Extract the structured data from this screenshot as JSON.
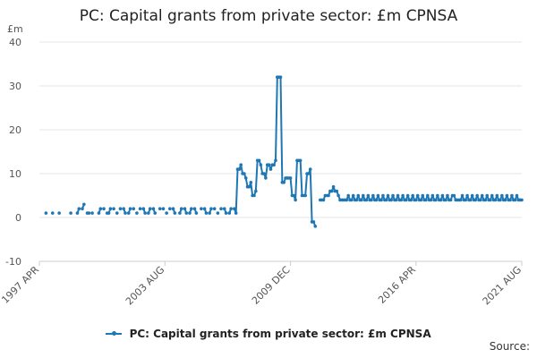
{
  "title": "PC: Capital grants from private sector: £m CPNSA",
  "source_label": "Source:",
  "colors": {
    "series": "#1f77b4",
    "grid": "#e6e6e6",
    "axis": "#cccccc"
  },
  "chart_data": {
    "type": "line",
    "unit_label": "£m",
    "ylim": [
      -10,
      40
    ],
    "yticks": [
      -10,
      0,
      10,
      20,
      30,
      40
    ],
    "xlim": [
      0,
      292
    ],
    "xticks": [
      {
        "label": "1997 APR",
        "at": 0
      },
      {
        "label": "2003 AUG",
        "at": 76
      },
      {
        "label": "2009 DEC",
        "at": 152
      },
      {
        "label": "2016 APR",
        "at": 228
      },
      {
        "label": "2021 AUG",
        "at": 292
      }
    ],
    "grid": true,
    "legend": "bottom",
    "series": [
      {
        "name": "PC: Capital grants from private sector: £m CPNSA",
        "points": [
          [
            4,
            1
          ],
          [
            8,
            1
          ],
          [
            12,
            1
          ],
          [
            19,
            1
          ],
          [
            23,
            1
          ],
          [
            24,
            2
          ],
          [
            26,
            2
          ],
          [
            27,
            3
          ],
          [
            29,
            1
          ],
          [
            30,
            1
          ],
          [
            32,
            1
          ],
          [
            36,
            1
          ],
          [
            37,
            2
          ],
          [
            39,
            2
          ],
          [
            41,
            1
          ],
          [
            42,
            1
          ],
          [
            43,
            2
          ],
          [
            45,
            2
          ],
          [
            47,
            1
          ],
          [
            49,
            2
          ],
          [
            51,
            2
          ],
          [
            52,
            1
          ],
          [
            54,
            1
          ],
          [
            55,
            2
          ],
          [
            57,
            2
          ],
          [
            59,
            1
          ],
          [
            61,
            2
          ],
          [
            63,
            2
          ],
          [
            64,
            1
          ],
          [
            66,
            1
          ],
          [
            67,
            2
          ],
          [
            69,
            2
          ],
          [
            70,
            1
          ],
          [
            73,
            2
          ],
          [
            75,
            2
          ],
          [
            77,
            1
          ],
          [
            79,
            2
          ],
          [
            81,
            2
          ],
          [
            82,
            1
          ],
          [
            85,
            1
          ],
          [
            86,
            2
          ],
          [
            88,
            2
          ],
          [
            89,
            1
          ],
          [
            91,
            1
          ],
          [
            92,
            2
          ],
          [
            94,
            2
          ],
          [
            95,
            1
          ],
          [
            98,
            2
          ],
          [
            100,
            2
          ],
          [
            101,
            1
          ],
          [
            103,
            1
          ],
          [
            104,
            2
          ],
          [
            106,
            2
          ],
          [
            108,
            1
          ],
          [
            110,
            2
          ],
          [
            112,
            2
          ],
          [
            113,
            1
          ],
          [
            115,
            1
          ],
          [
            116,
            2
          ],
          [
            118,
            2
          ],
          [
            119,
            1
          ],
          [
            120,
            11
          ],
          [
            121,
            11
          ],
          [
            122,
            12
          ],
          [
            123,
            10
          ],
          [
            124,
            10
          ],
          [
            125,
            9
          ],
          [
            126,
            7
          ],
          [
            127,
            7
          ],
          [
            128,
            8
          ],
          [
            129,
            5
          ],
          [
            130,
            5
          ],
          [
            131,
            6
          ],
          [
            132,
            13
          ],
          [
            133,
            13
          ],
          [
            134,
            12
          ],
          [
            135,
            10
          ],
          [
            136,
            10
          ],
          [
            137,
            9
          ],
          [
            138,
            12
          ],
          [
            139,
            12
          ],
          [
            140,
            11
          ],
          [
            141,
            12
          ],
          [
            142,
            12
          ],
          [
            143,
            13
          ],
          [
            144,
            32
          ],
          [
            145,
            32
          ],
          [
            146,
            32
          ],
          [
            147,
            8
          ],
          [
            148,
            8
          ],
          [
            149,
            9
          ],
          [
            150,
            9
          ],
          [
            151,
            9
          ],
          [
            152,
            9
          ],
          [
            153,
            5
          ],
          [
            154,
            5
          ],
          [
            155,
            4
          ],
          [
            156,
            13
          ],
          [
            157,
            13
          ],
          [
            158,
            13
          ],
          [
            159,
            5
          ],
          [
            160,
            5
          ],
          [
            161,
            5
          ],
          [
            162,
            10
          ],
          [
            163,
            10
          ],
          [
            164,
            11
          ],
          [
            165,
            -1
          ],
          [
            166,
            -1
          ],
          [
            167,
            -2
          ],
          [
            170,
            4
          ],
          [
            171,
            4
          ],
          [
            172,
            4
          ],
          [
            173,
            5
          ],
          [
            174,
            5
          ],
          [
            175,
            5
          ],
          [
            176,
            6
          ],
          [
            177,
            6
          ],
          [
            178,
            7
          ],
          [
            179,
            6
          ],
          [
            180,
            6
          ],
          [
            181,
            5
          ],
          [
            182,
            4
          ],
          [
            183,
            4
          ],
          [
            184,
            4
          ],
          [
            185,
            4
          ],
          [
            186,
            4
          ],
          [
            187,
            5
          ],
          [
            188,
            4
          ],
          [
            189,
            4
          ],
          [
            190,
            5
          ],
          [
            191,
            4
          ],
          [
            192,
            4
          ],
          [
            193,
            5
          ],
          [
            194,
            4
          ],
          [
            195,
            4
          ],
          [
            196,
            5
          ],
          [
            197,
            4
          ],
          [
            198,
            4
          ],
          [
            199,
            5
          ],
          [
            200,
            4
          ],
          [
            201,
            4
          ],
          [
            202,
            5
          ],
          [
            203,
            4
          ],
          [
            204,
            4
          ],
          [
            205,
            5
          ],
          [
            206,
            4
          ],
          [
            207,
            4
          ],
          [
            208,
            5
          ],
          [
            209,
            4
          ],
          [
            210,
            4
          ],
          [
            211,
            5
          ],
          [
            212,
            4
          ],
          [
            213,
            4
          ],
          [
            214,
            5
          ],
          [
            215,
            4
          ],
          [
            216,
            4
          ],
          [
            217,
            5
          ],
          [
            218,
            4
          ],
          [
            219,
            4
          ],
          [
            220,
            5
          ],
          [
            221,
            4
          ],
          [
            222,
            4
          ],
          [
            223,
            5
          ],
          [
            224,
            4
          ],
          [
            225,
            4
          ],
          [
            226,
            5
          ],
          [
            227,
            4
          ],
          [
            228,
            4
          ],
          [
            229,
            5
          ],
          [
            230,
            4
          ],
          [
            231,
            4
          ],
          [
            232,
            5
          ],
          [
            233,
            4
          ],
          [
            234,
            4
          ],
          [
            235,
            5
          ],
          [
            236,
            4
          ],
          [
            237,
            4
          ],
          [
            238,
            5
          ],
          [
            239,
            4
          ],
          [
            240,
            4
          ],
          [
            241,
            5
          ],
          [
            242,
            4
          ],
          [
            243,
            4
          ],
          [
            244,
            5
          ],
          [
            245,
            4
          ],
          [
            246,
            4
          ],
          [
            247,
            5
          ],
          [
            248,
            4
          ],
          [
            249,
            4
          ],
          [
            250,
            5
          ],
          [
            251,
            5
          ],
          [
            252,
            4
          ],
          [
            253,
            4
          ],
          [
            254,
            4
          ],
          [
            255,
            4
          ],
          [
            256,
            5
          ],
          [
            257,
            4
          ],
          [
            258,
            4
          ],
          [
            259,
            5
          ],
          [
            260,
            4
          ],
          [
            261,
            4
          ],
          [
            262,
            5
          ],
          [
            263,
            4
          ],
          [
            264,
            4
          ],
          [
            265,
            5
          ],
          [
            266,
            4
          ],
          [
            267,
            4
          ],
          [
            268,
            5
          ],
          [
            269,
            4
          ],
          [
            270,
            4
          ],
          [
            271,
            5
          ],
          [
            272,
            4
          ],
          [
            273,
            4
          ],
          [
            274,
            5
          ],
          [
            275,
            4
          ],
          [
            276,
            4
          ],
          [
            277,
            5
          ],
          [
            278,
            4
          ],
          [
            279,
            4
          ],
          [
            280,
            5
          ],
          [
            281,
            4
          ],
          [
            282,
            4
          ],
          [
            283,
            5
          ],
          [
            284,
            4
          ],
          [
            285,
            4
          ],
          [
            286,
            5
          ],
          [
            287,
            4
          ],
          [
            288,
            4
          ],
          [
            289,
            5
          ],
          [
            290,
            4
          ],
          [
            291,
            4
          ],
          [
            292,
            4
          ]
        ]
      }
    ]
  }
}
